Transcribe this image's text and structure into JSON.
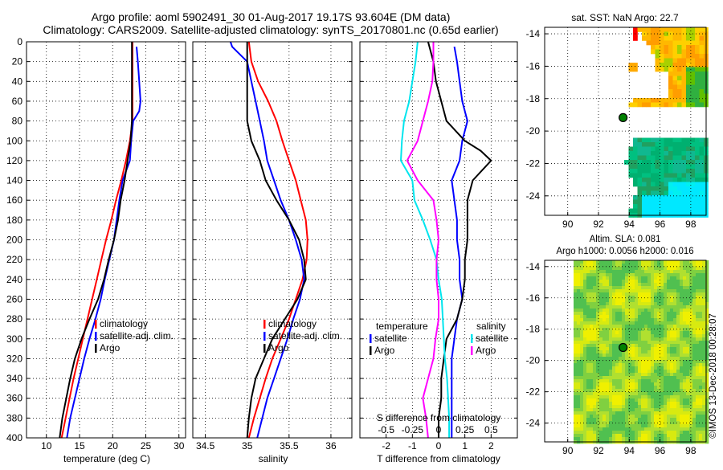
{
  "title": {
    "line1": "Argo profile: aoml 5902491_30 01-Aug-2017 19.17S 93.604E (DM data)",
    "line2": "Climatology: CARS2009. Satellite-adjusted climatology: synTS_20170801.nc (0.65d earlier)"
  },
  "depth_ticks": [
    "0",
    "20",
    "40",
    "60",
    "80",
    "100",
    "120",
    "140",
    "160",
    "180",
    "200",
    "220",
    "240",
    "260",
    "280",
    "300",
    "320",
    "340",
    "360",
    "380",
    "400"
  ],
  "colors": {
    "climatology": "#ff0000",
    "satellite": "#0000ff",
    "argo": "#000000",
    "salinity_sat": "#00e5ee",
    "salinity_argo": "#ff00ff",
    "position_marker": "#008000"
  },
  "chart_data": [
    {
      "type": "line",
      "name": "temperature_profile",
      "xlabel": "temperature (deg C)",
      "ylabel": "depth",
      "xlim": [
        7,
        31
      ],
      "ylim": [
        400,
        0
      ],
      "xticks": [
        10,
        15,
        20,
        25,
        30
      ],
      "xtick_labels": [
        "10",
        "15",
        "20",
        "25",
        "30"
      ],
      "legend": [
        "climatology",
        "satellite-adj. clim.",
        "Argo"
      ],
      "series": [
        {
          "name": "climatology",
          "color": "red",
          "depth": [
            0,
            80,
            100,
            120,
            140,
            160,
            180,
            200,
            220,
            240,
            260,
            280,
            300,
            320,
            340,
            360,
            380,
            400
          ],
          "values": [
            23.0,
            23.0,
            22.6,
            22.0,
            21.3,
            20.5,
            19.8,
            19.0,
            18.3,
            17.6,
            16.9,
            16.2,
            15.5,
            14.8,
            14.1,
            13.5,
            12.9,
            12.3
          ]
        },
        {
          "name": "satellite-adj. clim.",
          "color": "blue",
          "depth": [
            5,
            20,
            40,
            60,
            70,
            80,
            100,
            120,
            140,
            160,
            180,
            200,
            220,
            240,
            260,
            280,
            300,
            320,
            340,
            360,
            380,
            400
          ],
          "values": [
            23.6,
            23.8,
            24.0,
            24.2,
            24.0,
            23.1,
            22.8,
            22.6,
            21.5,
            21.0,
            20.6,
            20.2,
            19.5,
            18.8,
            18.2,
            17.4,
            16.5,
            15.7,
            15.0,
            14.3,
            13.6,
            13.1
          ]
        },
        {
          "name": "Argo",
          "color": "black",
          "depth": [
            0,
            80,
            100,
            140,
            160,
            180,
            200,
            220,
            240,
            260,
            280,
            300,
            320,
            340,
            360,
            380,
            400
          ],
          "values": [
            22.9,
            22.9,
            22.7,
            21.8,
            21.2,
            20.8,
            20.2,
            19.4,
            18.7,
            17.8,
            16.5,
            15.3,
            14.3,
            13.6,
            13.0,
            12.4,
            12.0
          ]
        }
      ]
    },
    {
      "type": "line",
      "name": "salinity_profile",
      "xlabel": "salinity",
      "ylabel": "depth",
      "xlim": [
        34.35,
        36.25
      ],
      "ylim": [
        400,
        0
      ],
      "xticks": [
        34.5,
        35,
        35.5,
        36
      ],
      "xtick_labels": [
        "34.5",
        "35",
        "35.5",
        "36"
      ],
      "legend": [
        "climatology",
        "satellite-adj. clim.",
        "Argo"
      ],
      "series": [
        {
          "name": "climatology",
          "color": "red",
          "depth": [
            0,
            20,
            40,
            60,
            80,
            100,
            120,
            140,
            160,
            180,
            200,
            220,
            240,
            260,
            280,
            300,
            320,
            340,
            360,
            380,
            400
          ],
          "values": [
            35.02,
            35.05,
            35.13,
            35.25,
            35.35,
            35.42,
            35.5,
            35.58,
            35.64,
            35.7,
            35.72,
            35.71,
            35.66,
            35.58,
            35.5,
            35.4,
            35.3,
            35.22,
            35.15,
            35.08,
            35.02
          ]
        },
        {
          "name": "satellite-adj. clim.",
          "color": "blue",
          "depth": [
            0,
            5,
            20,
            40,
            60,
            80,
            100,
            120,
            140,
            160,
            180,
            200,
            220,
            240,
            260,
            280,
            300,
            320,
            340,
            360,
            380,
            400
          ],
          "values": [
            34.8,
            34.82,
            35.0,
            35.05,
            35.1,
            35.15,
            35.2,
            35.24,
            35.32,
            35.4,
            35.5,
            35.58,
            35.65,
            35.68,
            35.63,
            35.55,
            35.48,
            35.4,
            35.32,
            35.24,
            35.18,
            35.12
          ]
        },
        {
          "name": "Argo",
          "color": "black",
          "depth": [
            0,
            80,
            100,
            120,
            140,
            160,
            180,
            200,
            220,
            240,
            260,
            280,
            300,
            320,
            340,
            360,
            380,
            400
          ],
          "values": [
            35.0,
            35.0,
            35.05,
            35.15,
            35.22,
            35.35,
            35.5,
            35.62,
            35.68,
            35.7,
            35.6,
            35.45,
            35.3,
            35.2,
            35.1,
            35.05,
            35.02,
            35.0
          ]
        }
      ]
    },
    {
      "type": "line",
      "name": "difference_profile",
      "xlabel": "T difference from climatology",
      "ylabel": "depth",
      "xlim": [
        -3,
        3
      ],
      "ylim": [
        400,
        0
      ],
      "xticks": [
        -2,
        -1,
        0,
        1,
        2
      ],
      "xtick_labels": [
        "-2",
        "-1",
        "0",
        "1",
        "2"
      ],
      "secondary_xlabel": "S difference from climatology",
      "secondary_xlim": [
        -0.75,
        0.75
      ],
      "secondary_xtick_labels": [
        "-0.5",
        "-0.25",
        "0",
        "0.25",
        "0.5"
      ],
      "legend_temperature_title": "temperature",
      "legend_salinity_title": "salinity",
      "legend_temperature": [
        "satellite",
        "Argo"
      ],
      "legend_salinity": [
        "satellite",
        "Argo"
      ],
      "series": [
        {
          "name": "temperature satellite",
          "color": "blue",
          "depth": [
            5,
            20,
            40,
            60,
            80,
            100,
            120,
            140,
            160,
            180,
            200,
            220,
            240,
            260,
            280,
            300,
            320,
            340,
            360,
            380,
            400
          ],
          "values": [
            0.6,
            0.7,
            0.8,
            0.9,
            1.1,
            0.9,
            0.8,
            0.5,
            0.6,
            0.7,
            0.7,
            0.8,
            0.8,
            0.9,
            0.7,
            0.6,
            0.5,
            0.5,
            0.5,
            0.5,
            0.5
          ]
        },
        {
          "name": "temperature Argo",
          "color": "black",
          "depth": [
            0,
            20,
            40,
            60,
            80,
            100,
            110,
            120,
            140,
            160,
            180,
            200,
            220,
            240,
            260,
            280,
            300,
            320,
            340,
            360,
            380,
            400
          ],
          "values": [
            -0.4,
            -0.2,
            -0.1,
            0.1,
            0.3,
            1.0,
            1.6,
            2.0,
            1.3,
            1.1,
            1.1,
            1.1,
            1.0,
            1.0,
            0.9,
            0.7,
            0.3,
            0.2,
            0.1,
            0.1,
            0.0,
            0.0
          ]
        },
        {
          "name": "salinity satellite",
          "color": "cyan",
          "depth": [
            0,
            20,
            40,
            60,
            80,
            100,
            120,
            140,
            160,
            180,
            200,
            220,
            240,
            260,
            280,
            300,
            320,
            340,
            360,
            380,
            400
          ],
          "values": [
            -0.2,
            -0.22,
            -0.25,
            -0.28,
            -0.33,
            -0.35,
            -0.36,
            -0.25,
            -0.23,
            -0.15,
            -0.08,
            -0.02,
            0.0,
            0.03,
            0.04,
            0.05,
            0.06,
            0.08,
            0.09,
            0.1,
            0.1
          ]
        },
        {
          "name": "salinity Argo",
          "color": "magenta",
          "depth": [
            0,
            20,
            40,
            60,
            80,
            100,
            120,
            140,
            160,
            180,
            200,
            220,
            240,
            260,
            280,
            300,
            320,
            340,
            360,
            380,
            400
          ],
          "values": [
            -0.05,
            -0.05,
            -0.06,
            -0.1,
            -0.15,
            -0.2,
            -0.3,
            -0.2,
            -0.05,
            -0.02,
            0.0,
            -0.02,
            -0.02,
            0.0,
            0.0,
            -0.03,
            -0.05,
            -0.1,
            -0.15,
            -0.12,
            -0.1
          ]
        }
      ]
    },
    {
      "type": "heatmap",
      "name": "sst_map",
      "title": "sat. SST: NaN Argo: 22.7",
      "xlim": [
        88.5,
        99
      ],
      "ylim": [
        -25.2,
        -13.6
      ],
      "xtick_labels": [
        "90",
        "92",
        "94",
        "96",
        "98"
      ],
      "xticks": [
        90,
        92,
        94,
        96,
        98
      ],
      "ytick_labels": [
        "-14",
        "-16",
        "-18",
        "-20",
        "-22",
        "-24"
      ],
      "yticks": [
        -14,
        -16,
        -18,
        -20,
        -22,
        -24
      ],
      "marker": [
        93.6,
        -19.17
      ]
    },
    {
      "type": "heatmap",
      "name": "sla_map",
      "title1": "Altim. SLA: 0.081",
      "title2": "Argo h1000: 0.0056 h2000: 0.016",
      "xlim": [
        88.5,
        99
      ],
      "ylim": [
        -25.2,
        -13.6
      ],
      "xtick_labels": [
        "90",
        "92",
        "94",
        "96",
        "98"
      ],
      "xticks": [
        90,
        92,
        94,
        96,
        98
      ],
      "ytick_labels": [
        "-14",
        "-16",
        "-18",
        "-20",
        "-22",
        "-24"
      ],
      "yticks": [
        -14,
        -16,
        -18,
        -20,
        -22,
        -24
      ],
      "marker": [
        93.6,
        -19.17
      ]
    }
  ],
  "watermark": "©IMOS 13-Dec-2018 00:28:07"
}
